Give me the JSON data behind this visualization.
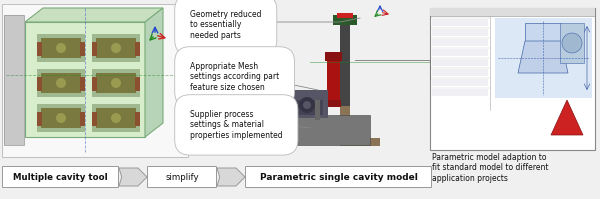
{
  "bg_color": "#f0f0f0",
  "figsize": [
    6.0,
    1.99
  ],
  "dpi": 100,
  "label1": "Multiple cavity tool",
  "label2": "simplify",
  "label3": "Parametric single cavity model",
  "ann1": "Geometry reduced\nto essentially\nneeded parts",
  "ann2": "Appropriate Mesh\nsettings according part\nfeature size chosen",
  "ann3": "Supplier process\nsettings & material\nproperties implemented",
  "ann4": "Parametric model adaption to\nfit standard model to different\napplication projects",
  "box_bg": "#e8e8e8",
  "box_border": "#999999",
  "white": "#ffffff",
  "green_fill": "#d8edcc",
  "green_border": "#7ab87a",
  "cad_fill": "#e8eff8",
  "cad_border": "#8899bb",
  "text_color": "#111111",
  "arrow_fill": "#d8d8d8",
  "arrow_border": "#999999",
  "ann_line_color": "#888888",
  "olive": "#7a7a40",
  "olive_light": "#9a9a50",
  "brown": "#8B5030",
  "red_dark": "#aa1111",
  "red_med": "#cc2222",
  "grey_dark": "#444444",
  "grey_med": "#777777",
  "grey_light": "#aaaaaa",
  "khaki": "#8B7355",
  "blue_axis": "#2244cc",
  "green_axis": "#228822",
  "red_axis": "#cc2222"
}
